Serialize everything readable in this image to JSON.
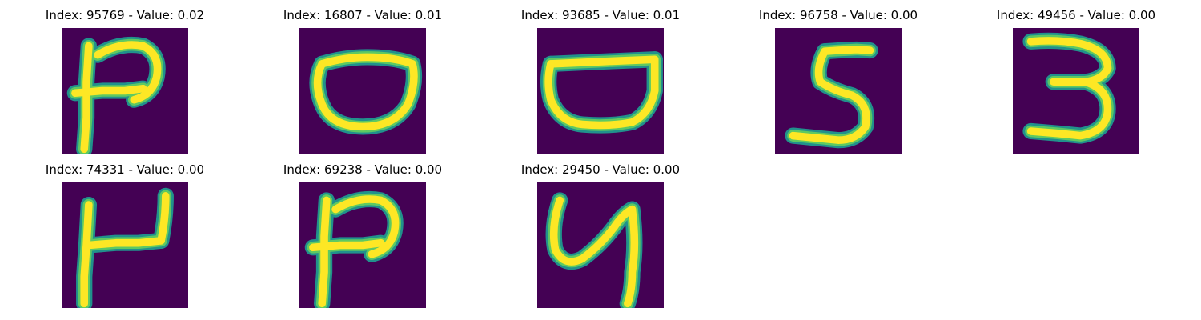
{
  "colors": {
    "background": "#440154",
    "edge": "#21918c",
    "stroke_mid": "#5ec962",
    "stroke_core": "#fde725"
  },
  "panels": [
    {
      "title": "Index: 95769 - Value: 0.02",
      "glyph": "digit-p-like"
    },
    {
      "title": "Index: 16807 - Value: 0.01",
      "glyph": "digit-o-like"
    },
    {
      "title": "Index: 93685 - Value: 0.01",
      "glyph": "digit-bowl-like"
    },
    {
      "title": "Index: 96758 - Value: 0.00",
      "glyph": "digit-5"
    },
    {
      "title": "Index: 49456 - Value: 0.00",
      "glyph": "digit-3"
    },
    {
      "title": "Index: 74331 - Value: 0.00",
      "glyph": "digit-4-like"
    },
    {
      "title": "Index: 69238 - Value: 0.00",
      "glyph": "digit-p-like"
    },
    {
      "title": "Index: 29450 - Value: 0.00",
      "glyph": "digit-4-curly"
    }
  ]
}
